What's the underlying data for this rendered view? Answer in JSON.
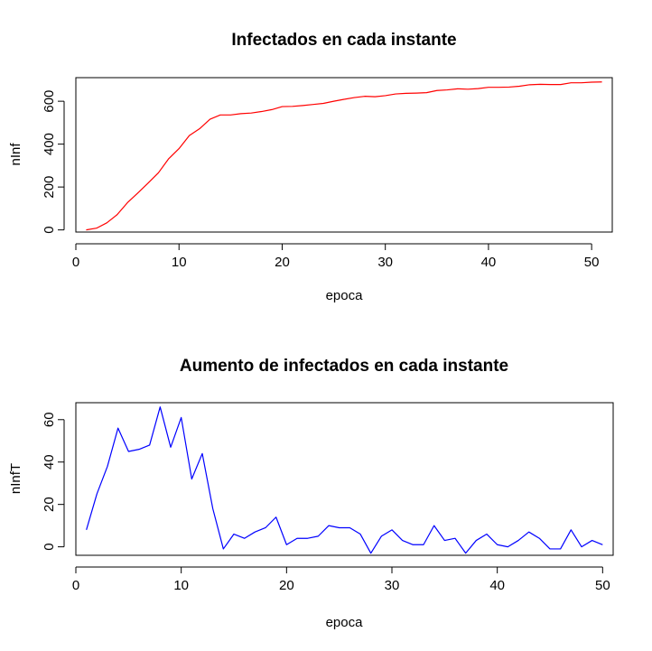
{
  "chart_data": [
    {
      "type": "line",
      "title": "Infectados en cada instante",
      "xlabel": "epoca",
      "ylabel": "nInf",
      "xlim": [
        0,
        52
      ],
      "ylim": [
        -10,
        710
      ],
      "x_ticks": [
        0,
        10,
        20,
        30,
        40,
        50
      ],
      "y_ticks": [
        0,
        200,
        400,
        600
      ],
      "color": "#ff0000",
      "series": [
        {
          "x": [
            1,
            2,
            3,
            4,
            5,
            6,
            7,
            8,
            9,
            10,
            11,
            12,
            13,
            14,
            15,
            16,
            17,
            18,
            19,
            20,
            21,
            22,
            23,
            24,
            25,
            26,
            27,
            28,
            29,
            30,
            31,
            32,
            33,
            34,
            35,
            36,
            37,
            38,
            39,
            40,
            41,
            42,
            43,
            44,
            45,
            46,
            47,
            48,
            49,
            50,
            51
          ],
          "values": [
            0,
            8,
            33,
            71,
            127,
            172,
            218,
            266,
            332,
            379,
            440,
            472,
            516,
            536,
            536,
            542,
            545,
            552,
            561,
            575,
            576,
            580,
            585,
            590,
            600,
            609,
            617,
            623,
            621,
            626,
            634,
            637,
            638,
            640,
            650,
            653,
            658,
            656,
            659,
            665,
            665,
            666,
            670,
            677,
            679,
            678,
            678,
            686,
            686,
            689,
            690
          ]
        }
      ]
    },
    {
      "type": "line",
      "title": "Aumento de infectados en cada instante",
      "xlabel": "epoca",
      "ylabel": "nInfT",
      "xlim": [
        0,
        51
      ],
      "ylim": [
        -4,
        68
      ],
      "x_ticks": [
        0,
        10,
        20,
        30,
        40,
        50
      ],
      "y_ticks": [
        0,
        20,
        40,
        60
      ],
      "color": "#0000ff",
      "series": [
        {
          "x": [
            1,
            2,
            3,
            4,
            5,
            6,
            7,
            8,
            9,
            10,
            11,
            12,
            13,
            14,
            15,
            16,
            17,
            18,
            19,
            20,
            21,
            22,
            23,
            24,
            25,
            26,
            27,
            28,
            29,
            30,
            31,
            32,
            33,
            34,
            35,
            36,
            37,
            38,
            39,
            40,
            41,
            42,
            43,
            44,
            45,
            46,
            47,
            48,
            49,
            50
          ],
          "values": [
            8,
            25,
            38,
            56,
            45,
            46,
            48,
            66,
            47,
            61,
            32,
            44,
            18,
            -1,
            6,
            4,
            7,
            9,
            14,
            1,
            4,
            4,
            5,
            10,
            9,
            9,
            6,
            -3,
            5,
            8,
            3,
            1,
            1,
            10,
            3,
            4,
            -3,
            3,
            6,
            1,
            0,
            3,
            7,
            4,
            -1,
            -1,
            8,
            0,
            3,
            1
          ]
        }
      ]
    }
  ]
}
